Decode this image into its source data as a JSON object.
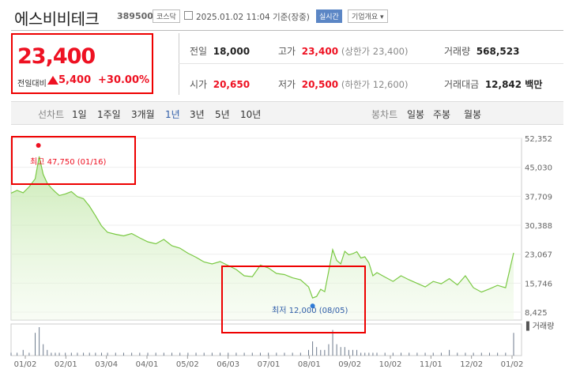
{
  "header": {
    "stock_name": "에스비비테크",
    "stock_code": "389500",
    "market_badge": "코스닥",
    "calendar_icon": "calendar-icon",
    "datetime": "2025.01.02 11:04 기준(장중)",
    "realtime_label": "실시간",
    "company_info_label": "기업개요"
  },
  "price": {
    "current": "23,400",
    "change_label": "전일대비",
    "change_value": "5,400",
    "change_percent": "+30.00%",
    "color_up": "#e12222"
  },
  "stats": {
    "prev_close_label": "전일",
    "prev_close": "18,000",
    "high_label": "고가",
    "high": "23,400",
    "upper_limit": "(상한가 23,400)",
    "volume_label": "거래량",
    "volume": "568,523",
    "open_label": "시가",
    "open": "20,650",
    "low_label": "저가",
    "low": "20,500",
    "lower_limit": "(하한가 12,600)",
    "amount_label": "거래대금",
    "amount": "12,842 백만"
  },
  "tabs": {
    "line_label": "선차트",
    "periods": [
      "1일",
      "1주일",
      "3개월",
      "1년",
      "3년",
      "5년",
      "10년"
    ],
    "selected": "1년",
    "candle_label": "봉차트",
    "candles": [
      "일봉",
      "주봉",
      "월봉"
    ]
  },
  "chart_data": {
    "type": "area",
    "ytick_labels": [
      "52,352",
      "45,030",
      "37,709",
      "30,388",
      "23,067",
      "15,746",
      "8,425"
    ],
    "ylim": [
      8425,
      52352
    ],
    "xtick_labels": [
      "01/02",
      "02/01",
      "03/04",
      "04/01",
      "05/02",
      "06/03",
      "07/01",
      "08/01",
      "09/02",
      "10/02",
      "11/01",
      "12/02",
      "01/02"
    ],
    "high_note": "최고 47,750 (01/16)",
    "low_note": "최저 12,000 (08/05)",
    "volume_label": "거래량",
    "line_color": "#7ac943",
    "x": [
      0,
      3,
      6,
      9,
      12,
      14,
      16,
      18,
      20,
      22,
      24,
      27,
      30,
      33,
      36,
      39,
      42,
      45,
      48,
      52,
      56,
      60,
      64,
      68,
      72,
      76,
      80,
      84,
      88,
      92,
      96,
      100,
      104,
      108,
      112,
      116,
      120,
      124,
      128,
      132,
      136,
      140,
      144,
      148,
      150,
      152,
      154,
      156,
      158,
      160,
      162,
      164,
      166,
      168,
      170,
      172,
      174,
      176,
      178,
      180,
      182,
      186,
      190,
      194,
      198,
      202,
      206,
      210,
      214,
      218,
      222,
      226,
      230,
      234,
      238,
      242,
      246,
      250
    ],
    "values": [
      38500,
      39200,
      38600,
      40100,
      42100,
      47750,
      43200,
      41000,
      39800,
      38800,
      37900,
      38300,
      38900,
      37600,
      37100,
      35200,
      32800,
      30200,
      28600,
      28100,
      27700,
      28300,
      27200,
      26200,
      25700,
      26800,
      25200,
      24600,
      23300,
      22300,
      21100,
      20600,
      21200,
      20200,
      19200,
      17600,
      17400,
      20300,
      19600,
      18200,
      17900,
      17100,
      16600,
      14800,
      12000,
      12400,
      14200,
      13600,
      18800,
      24200,
      21500,
      20600,
      23800,
      22900,
      23200,
      23700,
      22100,
      22400,
      20900,
      17600,
      18400,
      17300,
      16200,
      17600,
      16600,
      15700,
      14800,
      16200,
      15600,
      16900,
      15300,
      17600,
      14600,
      13500,
      14300,
      15200,
      14600,
      23400
    ],
    "volume": [
      1,
      1,
      2,
      1,
      8,
      10,
      4,
      2,
      1,
      1,
      1,
      1,
      1,
      1,
      1,
      1,
      1,
      1,
      1,
      1,
      1,
      1,
      1,
      1,
      1,
      1,
      1,
      1,
      1,
      1,
      1,
      1,
      1,
      1,
      1,
      1,
      1,
      1,
      1,
      1,
      1,
      1,
      1,
      2,
      5,
      3,
      2,
      2,
      4,
      9,
      4,
      3,
      3,
      2,
      2,
      2,
      1,
      1,
      1,
      1,
      1,
      1,
      1,
      1,
      1,
      1,
      1,
      1,
      1,
      2,
      1,
      1,
      1,
      1,
      1,
      1,
      1,
      8
    ]
  }
}
